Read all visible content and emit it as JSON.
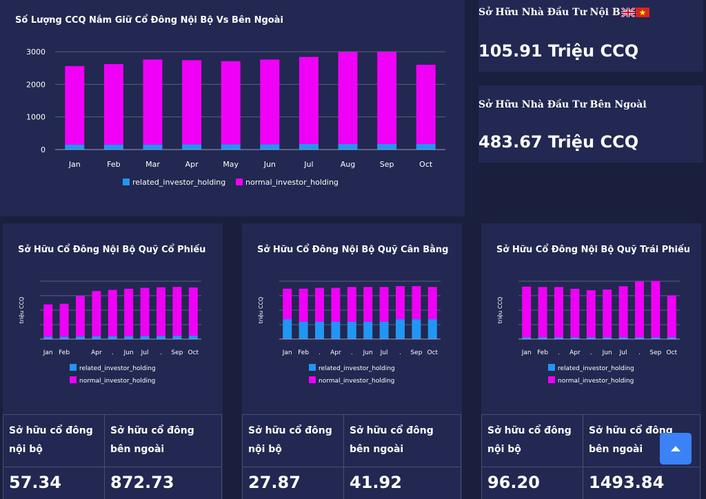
{
  "main_chart": {
    "title": "Số Lượng CCQ Nắm Giữ Cổ Đông Nội Bộ Vs Bên Ngoài"
  },
  "stats": {
    "domestic_label": "Sở Hữu Nhà Đầu Tư Nội B",
    "domestic_value": "105.91 Triệu CCQ",
    "foreign_label": "Sở Hữu Nhà Đầu Tư Bên Ngoài",
    "foreign_value": "483.67 Triệu CCQ"
  },
  "funds": [
    {
      "title": "Sở Hữu Cổ Đông Nội Bộ Quỹ Cổ Phiếu",
      "table_header_1": "Sở hữu cổ đông nội bộ",
      "table_header_2": "Sở hữu cổ đông bên ngoài",
      "value_1": "57.34",
      "value_2": "872.73"
    },
    {
      "title": "Sở Hữu Cổ Đông Nội Bộ Quỹ Cân Bằng",
      "table_header_1": "Sở hữu cổ đông nội bộ",
      "table_header_2": "Sở hữu cổ đông bên ngoài",
      "value_1": "27.87",
      "value_2": "41.92"
    },
    {
      "title": "Sở Hữu Cổ Đông Nội Bộ Quỹ Trái Phiếu",
      "table_header_1": "Sở hữu cổ đông nội bộ",
      "table_header_2": "Sở hữu cổ đông bên ngoài",
      "value_1": "96.20",
      "value_2": "1493.84"
    }
  ],
  "colors": {
    "related": "#2196f3",
    "normal": "#f000f7",
    "grid": "#5a6082",
    "text": "#ffffff"
  },
  "icons": {
    "uk_flag": "uk-flag-icon",
    "vn_flag": "vn-flag-icon",
    "scroll_top": "arrow-up-icon"
  },
  "chart_data": [
    {
      "type": "bar",
      "stacked": true,
      "title": "Số Lượng CCQ Nắm Giữ Cổ Đông Nội Bộ Vs Bên Ngoài",
      "categories": [
        "Jan",
        "Feb",
        "Mar",
        "Apr",
        "May",
        "Jun",
        "Jul",
        "Aug",
        "Sep",
        "Oct"
      ],
      "tick_labels": [
        "Jan",
        "Feb",
        "Mar",
        "Apr",
        "May",
        "Jun",
        "Jul",
        "Aug",
        "Sep",
        "Oct"
      ],
      "series": [
        {
          "name": "related_investor_holding",
          "values": [
            150,
            150,
            150,
            160,
            160,
            160,
            170,
            170,
            170,
            170
          ]
        },
        {
          "name": "normal_investor_holding",
          "values": [
            2410,
            2470,
            2610,
            2580,
            2550,
            2600,
            2670,
            2820,
            2820,
            2430
          ]
        }
      ],
      "xlabel": "",
      "ylabel": "",
      "ylim": [
        0,
        3000
      ],
      "yticks": [
        0,
        1000,
        2000,
        3000
      ],
      "show_yticks": true,
      "legend": "bottom"
    },
    {
      "type": "bar",
      "stacked": true,
      "title": "Sở Hữu Cổ Đông Nội Bộ Quỹ Cổ Phiếu",
      "categories": [
        "Jan",
        "Feb",
        "Mar",
        "Apr",
        "May",
        "Jun",
        "Jul",
        "Aug",
        "Sep",
        "Oct"
      ],
      "tick_labels": [
        "Jan",
        "Feb",
        "",
        "Apr",
        ".",
        "Jun",
        "Jul",
        ".",
        "Sep",
        "Oct"
      ],
      "series": [
        {
          "name": "related_investor_holding",
          "values": [
            40,
            40,
            45,
            50,
            50,
            50,
            55,
            55,
            57,
            57
          ]
        },
        {
          "name": "normal_investor_holding",
          "values": [
            560,
            570,
            700,
            780,
            800,
            820,
            830,
            840,
            845,
            835
          ]
        }
      ],
      "xlabel": "",
      "ylabel": "triệu CCQ",
      "ylim": [
        0,
        1000
      ],
      "show_yticks": false,
      "legend": "bottom"
    },
    {
      "type": "bar",
      "stacked": true,
      "title": "Sở Hữu Cổ Đông Nội Bộ Quỹ Cân Bằng",
      "categories": [
        "Jan",
        "Feb",
        "Mar",
        "Apr",
        "May",
        "Jun",
        "Jul",
        "Aug",
        "Sep",
        "Oct"
      ],
      "tick_labels": [
        "Jan",
        "Feb",
        ".",
        "Apr",
        ".",
        "Jun",
        "Jul",
        ".",
        "Sep",
        "Oct"
      ],
      "series": [
        {
          "name": "related_investor_holding",
          "values": [
            24,
            21,
            21,
            21,
            21,
            21,
            21,
            24,
            24,
            24
          ]
        },
        {
          "name": "normal_investor_holding",
          "values": [
            37,
            40,
            41,
            41,
            42,
            42,
            42,
            40,
            40,
            39
          ]
        }
      ],
      "xlabel": "",
      "ylabel": "triệu CCQ",
      "ylim": [
        0,
        70
      ],
      "show_yticks": false,
      "legend": "bottom"
    },
    {
      "type": "bar",
      "stacked": true,
      "title": "Sở Hữu Cổ Đông Nội Bộ Quỹ Trái Phiếu",
      "categories": [
        "Jan",
        "Feb",
        "Mar",
        "Apr",
        "May",
        "Jun",
        "Jul",
        "Aug",
        "Sep",
        "Oct"
      ],
      "tick_labels": [
        "Jan",
        "Feb",
        ".",
        "Apr",
        ".",
        "Jun",
        "Jul",
        ".",
        "Sep",
        "Oct"
      ],
      "series": [
        {
          "name": "related_investor_holding",
          "values": [
            50,
            50,
            50,
            50,
            50,
            50,
            50,
            50,
            50,
            50
          ]
        },
        {
          "name": "normal_investor_holding",
          "values": [
            1400,
            1390,
            1390,
            1340,
            1300,
            1320,
            1410,
            1540,
            1560,
            1160
          ]
        }
      ],
      "xlabel": "",
      "ylabel": "triệu CCQ",
      "ylim": [
        0,
        1600
      ],
      "show_yticks": false,
      "legend": "bottom"
    }
  ]
}
